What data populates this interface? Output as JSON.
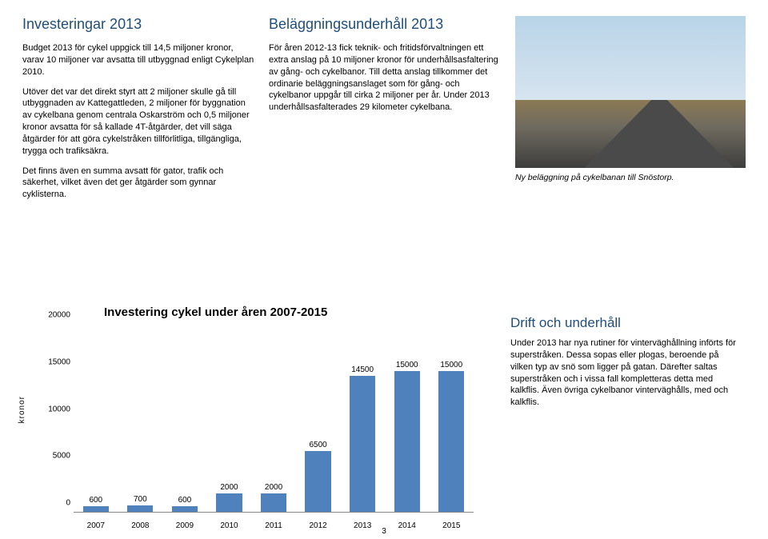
{
  "left": {
    "title": "Investeringar 2013",
    "title_color": "#1f4e79",
    "p1": "Budget 2013 för cykel uppgick till 14,5 miljoner kronor, varav 10 miljoner var avsatta till utbyggnad enligt Cykelplan 2010.",
    "p2": "Utöver det var det direkt styrt att 2 miljoner skulle gå till utbyggnaden av Kattegattleden, 2 miljoner för byggnation av cykelbana genom centrala Oskarström och 0,5 miljoner kronor avsatta för så kallade 4T-åtgärder, det vill säga åtgärder för att göra cykelstråken tillförlitliga, tillgängliga, trygga och trafiksäkra.",
    "p3": "Det finns även en summa avsatt för gator, trafik och säkerhet, vilket även det ger åtgärder som gynnar cyklisterna."
  },
  "mid": {
    "title": "Beläggningsunderhåll 2013",
    "title_color": "#1f4e79",
    "p1": "För åren 2012-13 fick teknik- och fritidsförvaltningen ett extra anslag på 10 miljoner kronor för underhållsasfaltering av gång- och cykelbanor. Till detta anslag tillkommer det ordinarie beläggningsanslaget som för gång- och cykelbanor uppgår till cirka 2 miljoner per år. Under 2013 underhållsasfalterades 29 kilometer cykelbana."
  },
  "right": {
    "caption": "Ny beläggning på cykelbanan till Snöstorp.",
    "sub_title": "Drift och underhåll",
    "sub_title_color": "#1f4e79",
    "p1": "Under 2013 har nya rutiner för vinterväghållning införts för superstråken. Dessa sopas eller plogas, beroende på vilken typ av snö som ligger på gatan. Därefter saltas superstråken och i vissa fall kompletteras detta med kalkflis. Även övriga cykelbanor vinterväghålls, med och kalkflis."
  },
  "chart": {
    "title": "Investering cykel under åren 2007-2015",
    "ylabel": "kronor",
    "ymax": 20000,
    "ytick_step": 5000,
    "bar_color": "#4f81bd",
    "categories": [
      "2007",
      "2008",
      "2009",
      "2010",
      "2011",
      "2012",
      "2013",
      "2014",
      "2015"
    ],
    "values": [
      600,
      700,
      600,
      2000,
      2000,
      6500,
      14500,
      15000,
      15000
    ]
  },
  "page_number": "3"
}
